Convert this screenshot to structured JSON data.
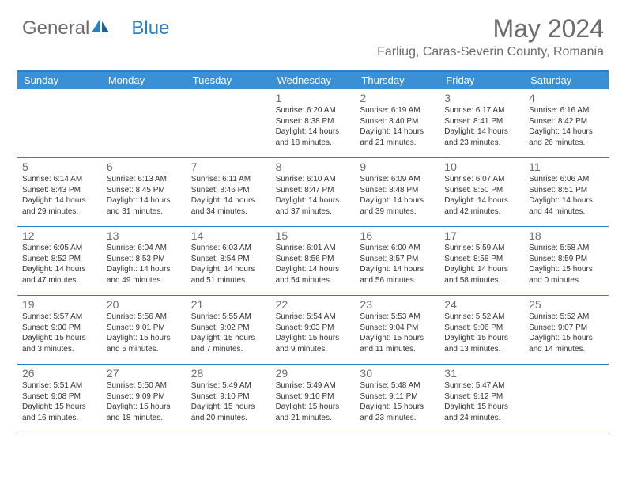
{
  "brand": {
    "part1": "General",
    "part2": "Blue"
  },
  "title": "May 2024",
  "location": "Farliug, Caras-Severin County, Romania",
  "colors": {
    "header_bg": "#3b8fd4",
    "border": "#2a7fc9",
    "text_gray": "#6b6b6b",
    "text_dark": "#333333",
    "white": "#ffffff"
  },
  "dayNames": [
    "Sunday",
    "Monday",
    "Tuesday",
    "Wednesday",
    "Thursday",
    "Friday",
    "Saturday"
  ],
  "weeks": [
    [
      null,
      null,
      null,
      {
        "d": "1",
        "sr": "6:20 AM",
        "ss": "8:38 PM",
        "dl1": "Daylight: 14 hours",
        "dl2": "and 18 minutes."
      },
      {
        "d": "2",
        "sr": "6:19 AM",
        "ss": "8:40 PM",
        "dl1": "Daylight: 14 hours",
        "dl2": "and 21 minutes."
      },
      {
        "d": "3",
        "sr": "6:17 AM",
        "ss": "8:41 PM",
        "dl1": "Daylight: 14 hours",
        "dl2": "and 23 minutes."
      },
      {
        "d": "4",
        "sr": "6:16 AM",
        "ss": "8:42 PM",
        "dl1": "Daylight: 14 hours",
        "dl2": "and 26 minutes."
      }
    ],
    [
      {
        "d": "5",
        "sr": "6:14 AM",
        "ss": "8:43 PM",
        "dl1": "Daylight: 14 hours",
        "dl2": "and 29 minutes."
      },
      {
        "d": "6",
        "sr": "6:13 AM",
        "ss": "8:45 PM",
        "dl1": "Daylight: 14 hours",
        "dl2": "and 31 minutes."
      },
      {
        "d": "7",
        "sr": "6:11 AM",
        "ss": "8:46 PM",
        "dl1": "Daylight: 14 hours",
        "dl2": "and 34 minutes."
      },
      {
        "d": "8",
        "sr": "6:10 AM",
        "ss": "8:47 PM",
        "dl1": "Daylight: 14 hours",
        "dl2": "and 37 minutes."
      },
      {
        "d": "9",
        "sr": "6:09 AM",
        "ss": "8:48 PM",
        "dl1": "Daylight: 14 hours",
        "dl2": "and 39 minutes."
      },
      {
        "d": "10",
        "sr": "6:07 AM",
        "ss": "8:50 PM",
        "dl1": "Daylight: 14 hours",
        "dl2": "and 42 minutes."
      },
      {
        "d": "11",
        "sr": "6:06 AM",
        "ss": "8:51 PM",
        "dl1": "Daylight: 14 hours",
        "dl2": "and 44 minutes."
      }
    ],
    [
      {
        "d": "12",
        "sr": "6:05 AM",
        "ss": "8:52 PM",
        "dl1": "Daylight: 14 hours",
        "dl2": "and 47 minutes."
      },
      {
        "d": "13",
        "sr": "6:04 AM",
        "ss": "8:53 PM",
        "dl1": "Daylight: 14 hours",
        "dl2": "and 49 minutes."
      },
      {
        "d": "14",
        "sr": "6:03 AM",
        "ss": "8:54 PM",
        "dl1": "Daylight: 14 hours",
        "dl2": "and 51 minutes."
      },
      {
        "d": "15",
        "sr": "6:01 AM",
        "ss": "8:56 PM",
        "dl1": "Daylight: 14 hours",
        "dl2": "and 54 minutes."
      },
      {
        "d": "16",
        "sr": "6:00 AM",
        "ss": "8:57 PM",
        "dl1": "Daylight: 14 hours",
        "dl2": "and 56 minutes."
      },
      {
        "d": "17",
        "sr": "5:59 AM",
        "ss": "8:58 PM",
        "dl1": "Daylight: 14 hours",
        "dl2": "and 58 minutes."
      },
      {
        "d": "18",
        "sr": "5:58 AM",
        "ss": "8:59 PM",
        "dl1": "Daylight: 15 hours",
        "dl2": "and 0 minutes."
      }
    ],
    [
      {
        "d": "19",
        "sr": "5:57 AM",
        "ss": "9:00 PM",
        "dl1": "Daylight: 15 hours",
        "dl2": "and 3 minutes."
      },
      {
        "d": "20",
        "sr": "5:56 AM",
        "ss": "9:01 PM",
        "dl1": "Daylight: 15 hours",
        "dl2": "and 5 minutes."
      },
      {
        "d": "21",
        "sr": "5:55 AM",
        "ss": "9:02 PM",
        "dl1": "Daylight: 15 hours",
        "dl2": "and 7 minutes."
      },
      {
        "d": "22",
        "sr": "5:54 AM",
        "ss": "9:03 PM",
        "dl1": "Daylight: 15 hours",
        "dl2": "and 9 minutes."
      },
      {
        "d": "23",
        "sr": "5:53 AM",
        "ss": "9:04 PM",
        "dl1": "Daylight: 15 hours",
        "dl2": "and 11 minutes."
      },
      {
        "d": "24",
        "sr": "5:52 AM",
        "ss": "9:06 PM",
        "dl1": "Daylight: 15 hours",
        "dl2": "and 13 minutes."
      },
      {
        "d": "25",
        "sr": "5:52 AM",
        "ss": "9:07 PM",
        "dl1": "Daylight: 15 hours",
        "dl2": "and 14 minutes."
      }
    ],
    [
      {
        "d": "26",
        "sr": "5:51 AM",
        "ss": "9:08 PM",
        "dl1": "Daylight: 15 hours",
        "dl2": "and 16 minutes."
      },
      {
        "d": "27",
        "sr": "5:50 AM",
        "ss": "9:09 PM",
        "dl1": "Daylight: 15 hours",
        "dl2": "and 18 minutes."
      },
      {
        "d": "28",
        "sr": "5:49 AM",
        "ss": "9:10 PM",
        "dl1": "Daylight: 15 hours",
        "dl2": "and 20 minutes."
      },
      {
        "d": "29",
        "sr": "5:49 AM",
        "ss": "9:10 PM",
        "dl1": "Daylight: 15 hours",
        "dl2": "and 21 minutes."
      },
      {
        "d": "30",
        "sr": "5:48 AM",
        "ss": "9:11 PM",
        "dl1": "Daylight: 15 hours",
        "dl2": "and 23 minutes."
      },
      {
        "d": "31",
        "sr": "5:47 AM",
        "ss": "9:12 PM",
        "dl1": "Daylight: 15 hours",
        "dl2": "and 24 minutes."
      },
      null
    ]
  ],
  "labels": {
    "sunrise": "Sunrise:",
    "sunset": "Sunset:"
  }
}
